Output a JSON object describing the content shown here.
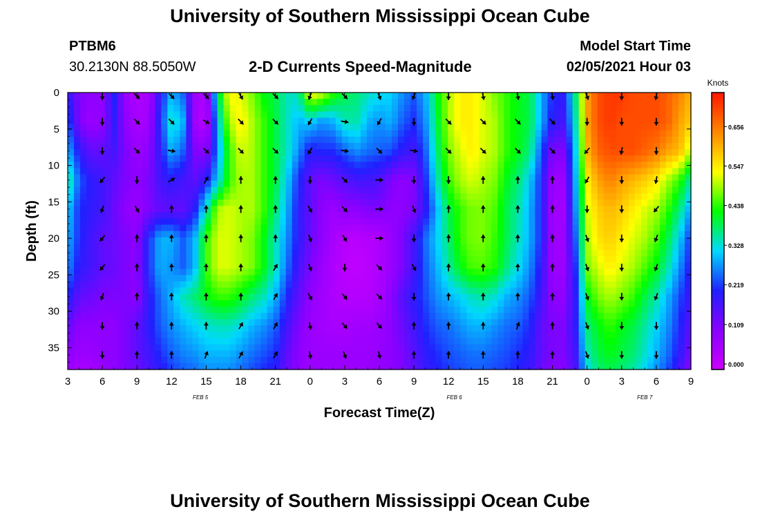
{
  "header": {
    "title": "University of Southern Mississippi Ocean Cube",
    "station": "PTBM6",
    "coords": "30.2130N 88.5050W",
    "subtitle": "2-D Currents Speed-Magnitude",
    "model_start_label": "Model Start Time",
    "model_start_value": "02/05/2021 Hour 03",
    "footer_title": "University of Southern Mississippi Ocean Cube"
  },
  "chart_data": {
    "type": "heatmap",
    "title": "2-D Currents Speed-Magnitude",
    "xlabel": "Forecast Time(Z)",
    "ylabel": "Depth (ft)",
    "x_tick_labels": [
      "3",
      "6",
      "9",
      "12",
      "15",
      "18",
      "21",
      "0",
      "3",
      "6",
      "9",
      "12",
      "15",
      "18",
      "21",
      "0",
      "3",
      "6",
      "9"
    ],
    "x_range_hours": [
      3,
      57
    ],
    "day_labels": [
      {
        "text": "FEB 5",
        "hour": 14.5
      },
      {
        "text": "FEB 6",
        "hour": 36.5
      },
      {
        "text": "FEB 7",
        "hour": 53
      }
    ],
    "y_tick_labels": [
      "0",
      "5",
      "10",
      "15",
      "20",
      "25",
      "30",
      "35"
    ],
    "ylim": [
      0,
      38
    ],
    "y_inverted": true,
    "colorbar": {
      "unit": "Knots",
      "ticks": [
        "0.000",
        "0.109",
        "0.219",
        "0.328",
        "0.438",
        "0.547",
        "0.656"
      ],
      "range": [
        0,
        0.75
      ]
    },
    "colors": [
      "#cc00ff",
      "#8a00ff",
      "#2020ff",
      "#00d8ff",
      "#00ff00",
      "#ffff00",
      "#ff8800",
      "#ff1800"
    ],
    "grid": false,
    "speed_field_knots": {
      "hours": [
        3,
        4,
        5,
        6,
        7,
        8,
        9,
        10,
        11,
        12,
        13,
        14,
        15,
        16,
        17,
        18,
        19,
        20,
        21,
        22,
        23,
        24,
        25,
        26,
        27,
        28,
        29,
        30,
        31,
        32,
        33,
        34,
        35,
        36,
        37,
        38,
        39,
        40,
        41,
        42,
        43,
        44,
        45,
        46,
        47,
        48,
        49,
        50,
        51,
        52,
        53,
        54,
        55,
        56,
        57
      ],
      "depths_ft": [
        0,
        4,
        8,
        12,
        16,
        20,
        24,
        28,
        32,
        36,
        38
      ],
      "values": [
        [
          0.2,
          0.12,
          0.1,
          0.1,
          0.22,
          0.08,
          0.05,
          0.06,
          0.2,
          0.3,
          0.25,
          0.08,
          0.05,
          0.38,
          0.55,
          0.52,
          0.48,
          0.42,
          0.4,
          0.35,
          0.35,
          0.55,
          0.52,
          0.45,
          0.4,
          0.38,
          0.35,
          0.33,
          0.32,
          0.28,
          0.25,
          0.3,
          0.42,
          0.5,
          0.55,
          0.55,
          0.52,
          0.48,
          0.45,
          0.42,
          0.4,
          0.3,
          0.22,
          0.2,
          0.38,
          0.62,
          0.7,
          0.72,
          0.72,
          0.7,
          0.7,
          0.7,
          0.68,
          0.65,
          0.6
        ],
        [
          0.25,
          0.12,
          0.08,
          0.1,
          0.2,
          0.1,
          0.06,
          0.07,
          0.22,
          0.35,
          0.3,
          0.07,
          0.03,
          0.32,
          0.5,
          0.55,
          0.5,
          0.45,
          0.4,
          0.35,
          0.3,
          0.32,
          0.28,
          0.3,
          0.35,
          0.36,
          0.3,
          0.28,
          0.3,
          0.25,
          0.22,
          0.28,
          0.4,
          0.5,
          0.55,
          0.55,
          0.52,
          0.5,
          0.45,
          0.42,
          0.4,
          0.3,
          0.2,
          0.18,
          0.35,
          0.62,
          0.7,
          0.72,
          0.7,
          0.7,
          0.7,
          0.7,
          0.68,
          0.62,
          0.58
        ],
        [
          0.3,
          0.2,
          0.15,
          0.15,
          0.18,
          0.12,
          0.08,
          0.1,
          0.2,
          0.3,
          0.25,
          0.12,
          0.1,
          0.28,
          0.45,
          0.52,
          0.5,
          0.45,
          0.4,
          0.35,
          0.28,
          0.2,
          0.22,
          0.22,
          0.25,
          0.28,
          0.26,
          0.25,
          0.24,
          0.2,
          0.18,
          0.25,
          0.38,
          0.48,
          0.52,
          0.55,
          0.52,
          0.5,
          0.45,
          0.42,
          0.38,
          0.25,
          0.12,
          0.12,
          0.32,
          0.6,
          0.68,
          0.7,
          0.7,
          0.7,
          0.68,
          0.66,
          0.62,
          0.6,
          0.5
        ],
        [
          0.38,
          0.25,
          0.2,
          0.18,
          0.15,
          0.12,
          0.1,
          0.12,
          0.18,
          0.2,
          0.18,
          0.15,
          0.2,
          0.32,
          0.45,
          0.5,
          0.5,
          0.45,
          0.4,
          0.32,
          0.22,
          0.15,
          0.12,
          0.14,
          0.16,
          0.18,
          0.18,
          0.17,
          0.12,
          0.1,
          0.12,
          0.22,
          0.35,
          0.45,
          0.5,
          0.52,
          0.5,
          0.48,
          0.42,
          0.38,
          0.32,
          0.22,
          0.08,
          0.08,
          0.3,
          0.55,
          0.62,
          0.65,
          0.62,
          0.6,
          0.58,
          0.55,
          0.5,
          0.45,
          0.35
        ],
        [
          0.32,
          0.22,
          0.2,
          0.18,
          0.14,
          0.1,
          0.08,
          0.12,
          0.15,
          0.15,
          0.15,
          0.2,
          0.35,
          0.5,
          0.52,
          0.5,
          0.5,
          0.45,
          0.38,
          0.3,
          0.2,
          0.15,
          0.1,
          0.08,
          0.1,
          0.1,
          0.12,
          0.12,
          0.1,
          0.1,
          0.12,
          0.2,
          0.3,
          0.4,
          0.45,
          0.48,
          0.48,
          0.46,
          0.4,
          0.36,
          0.3,
          0.22,
          0.07,
          0.07,
          0.28,
          0.52,
          0.58,
          0.6,
          0.58,
          0.55,
          0.52,
          0.5,
          0.45,
          0.38,
          0.28
        ],
        [
          0.3,
          0.22,
          0.18,
          0.15,
          0.14,
          0.12,
          0.1,
          0.22,
          0.3,
          0.3,
          0.25,
          0.3,
          0.45,
          0.52,
          0.52,
          0.5,
          0.48,
          0.42,
          0.35,
          0.28,
          0.2,
          0.14,
          0.1,
          0.06,
          0.04,
          0.03,
          0.04,
          0.05,
          0.08,
          0.12,
          0.18,
          0.26,
          0.32,
          0.38,
          0.45,
          0.48,
          0.48,
          0.45,
          0.4,
          0.35,
          0.3,
          0.22,
          0.07,
          0.08,
          0.25,
          0.5,
          0.56,
          0.58,
          0.55,
          0.52,
          0.5,
          0.46,
          0.4,
          0.32,
          0.22
        ],
        [
          0.28,
          0.2,
          0.18,
          0.15,
          0.14,
          0.12,
          0.1,
          0.22,
          0.3,
          0.28,
          0.25,
          0.3,
          0.45,
          0.52,
          0.52,
          0.5,
          0.48,
          0.42,
          0.35,
          0.26,
          0.18,
          0.12,
          0.08,
          0.05,
          0.03,
          0.02,
          0.03,
          0.05,
          0.08,
          0.12,
          0.18,
          0.25,
          0.3,
          0.36,
          0.42,
          0.46,
          0.46,
          0.44,
          0.38,
          0.33,
          0.28,
          0.2,
          0.08,
          0.08,
          0.22,
          0.48,
          0.52,
          0.55,
          0.52,
          0.5,
          0.46,
          0.42,
          0.36,
          0.28,
          0.2
        ],
        [
          0.22,
          0.15,
          0.14,
          0.12,
          0.12,
          0.12,
          0.1,
          0.2,
          0.26,
          0.3,
          0.35,
          0.38,
          0.42,
          0.45,
          0.45,
          0.42,
          0.38,
          0.35,
          0.3,
          0.22,
          0.15,
          0.1,
          0.07,
          0.05,
          0.04,
          0.04,
          0.04,
          0.06,
          0.1,
          0.16,
          0.2,
          0.24,
          0.28,
          0.3,
          0.32,
          0.35,
          0.36,
          0.34,
          0.3,
          0.28,
          0.25,
          0.18,
          0.1,
          0.1,
          0.2,
          0.42,
          0.48,
          0.5,
          0.48,
          0.45,
          0.4,
          0.36,
          0.3,
          0.24,
          0.18
        ],
        [
          0.15,
          0.1,
          0.1,
          0.1,
          0.1,
          0.12,
          0.15,
          0.2,
          0.25,
          0.28,
          0.3,
          0.32,
          0.34,
          0.35,
          0.35,
          0.33,
          0.3,
          0.28,
          0.25,
          0.18,
          0.12,
          0.08,
          0.07,
          0.06,
          0.06,
          0.07,
          0.07,
          0.08,
          0.1,
          0.14,
          0.18,
          0.22,
          0.25,
          0.26,
          0.28,
          0.3,
          0.3,
          0.28,
          0.26,
          0.25,
          0.22,
          0.15,
          0.12,
          0.12,
          0.2,
          0.38,
          0.42,
          0.45,
          0.42,
          0.4,
          0.36,
          0.32,
          0.28,
          0.22,
          0.15
        ],
        [
          0.1,
          0.08,
          0.08,
          0.1,
          0.1,
          0.12,
          0.15,
          0.18,
          0.22,
          0.25,
          0.27,
          0.28,
          0.3,
          0.3,
          0.3,
          0.28,
          0.26,
          0.24,
          0.22,
          0.15,
          0.1,
          0.08,
          0.08,
          0.08,
          0.08,
          0.08,
          0.08,
          0.09,
          0.1,
          0.12,
          0.16,
          0.2,
          0.22,
          0.24,
          0.25,
          0.26,
          0.26,
          0.25,
          0.24,
          0.22,
          0.2,
          0.15,
          0.12,
          0.12,
          0.18,
          0.35,
          0.4,
          0.42,
          0.4,
          0.38,
          0.34,
          0.3,
          0.26,
          0.2,
          0.12
        ],
        [
          0.08,
          0.06,
          0.06,
          0.08,
          0.1,
          0.12,
          0.14,
          0.17,
          0.2,
          0.23,
          0.25,
          0.26,
          0.28,
          0.28,
          0.28,
          0.26,
          0.24,
          0.22,
          0.2,
          0.14,
          0.1,
          0.08,
          0.08,
          0.08,
          0.08,
          0.08,
          0.08,
          0.09,
          0.1,
          0.12,
          0.15,
          0.19,
          0.21,
          0.23,
          0.24,
          0.25,
          0.25,
          0.24,
          0.23,
          0.21,
          0.19,
          0.14,
          0.11,
          0.11,
          0.17,
          0.33,
          0.38,
          0.4,
          0.38,
          0.36,
          0.32,
          0.28,
          0.24,
          0.18,
          0.1
        ]
      ]
    },
    "arrow_direction_deg_clockwise_from_north": {
      "hours": [
        6,
        9,
        12,
        15,
        18,
        21,
        24,
        27,
        30,
        33,
        36,
        39,
        42,
        45,
        48,
        51,
        54
      ],
      "depths_ft": [
        0.5,
        4,
        8,
        12,
        16,
        20,
        24,
        28,
        32,
        36
      ],
      "values": [
        [
          180,
          135,
          135,
          135,
          150,
          135,
          200,
          135,
          160,
          200,
          180,
          170,
          170,
          170,
          160,
          180,
          190
        ],
        [
          180,
          135,
          135,
          120,
          135,
          135,
          210,
          100,
          210,
          180,
          135,
          135,
          135,
          135,
          180,
          180,
          180
        ],
        [
          180,
          135,
          100,
          135,
          135,
          135,
          210,
          100,
          135,
          100,
          135,
          135,
          135,
          135,
          220,
          190,
          180
        ],
        [
          220,
          180,
          60,
          30,
          0,
          0,
          180,
          135,
          90,
          180,
          180,
          0,
          0,
          0,
          210,
          180,
          190
        ],
        [
          200,
          150,
          0,
          0,
          0,
          0,
          150,
          135,
          90,
          160,
          0,
          0,
          0,
          0,
          180,
          180,
          220
        ],
        [
          220,
          0,
          0,
          0,
          0,
          0,
          160,
          150,
          90,
          180,
          0,
          0,
          0,
          0,
          160,
          180,
          200
        ],
        [
          220,
          0,
          0,
          0,
          0,
          30,
          160,
          180,
          135,
          150,
          0,
          0,
          0,
          0,
          160,
          180,
          200
        ],
        [
          200,
          0,
          0,
          0,
          0,
          30,
          150,
          140,
          135,
          180,
          0,
          0,
          0,
          0,
          160,
          180,
          200
        ],
        [
          180,
          0,
          0,
          0,
          30,
          30,
          170,
          140,
          140,
          0,
          0,
          0,
          20,
          0,
          160,
          180,
          180
        ],
        [
          180,
          0,
          0,
          20,
          30,
          30,
          170,
          160,
          170,
          0,
          0,
          0,
          0,
          0,
          160,
          180,
          180
        ]
      ]
    }
  }
}
